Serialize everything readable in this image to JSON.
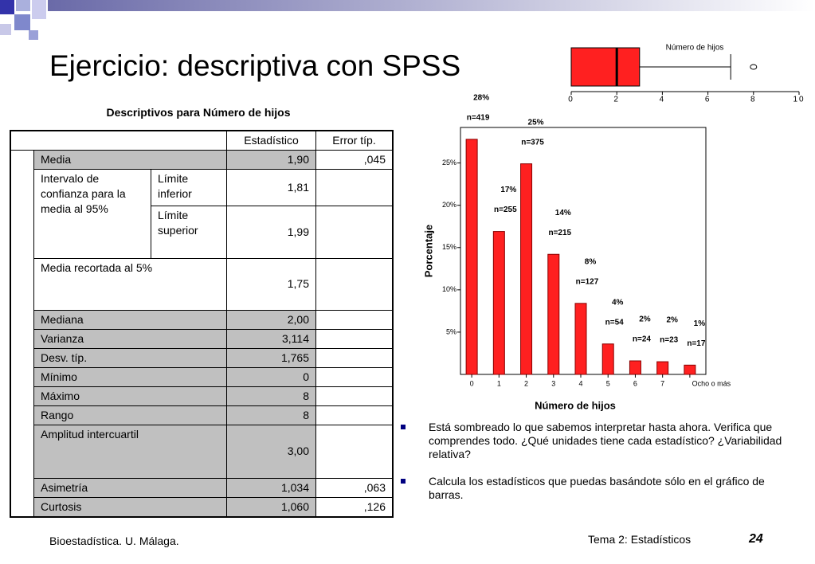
{
  "title": "Ejercicio: descriptiva con SPSS",
  "table": {
    "title": "Descriptivos para Número de hijos",
    "headers": [
      "Estadístico",
      "Error típ."
    ],
    "rows": [
      {
        "label": "Media",
        "statistic": "1,90",
        "error": ",045",
        "shaded": true
      },
      {
        "label": "Intervalo de confianza para la media al 95%",
        "sublabel": "Límite inferior",
        "statistic": "1,81",
        "shaded": false
      },
      {
        "sublabel": "Límite superior",
        "statistic": "1,99",
        "shaded": false
      },
      {
        "label": "Media recortada al 5%",
        "statistic": "1,75",
        "shaded": false
      },
      {
        "label": "Mediana",
        "statistic": "2,00",
        "shaded": true
      },
      {
        "label": "Varianza",
        "statistic": "3,114",
        "shaded": true
      },
      {
        "label": "Desv. típ.",
        "statistic": "1,765",
        "shaded": true
      },
      {
        "label": "Mínimo",
        "statistic": "0",
        "shaded": true
      },
      {
        "label": "Máximo",
        "statistic": "8",
        "shaded": true
      },
      {
        "label": "Rango",
        "statistic": "8",
        "shaded": true
      },
      {
        "label": "Amplitud intercuartil",
        "statistic": "3,00",
        "shaded": true
      },
      {
        "label": "Asimetría",
        "statistic": "1,034",
        "error": ",063",
        "shaded": true
      },
      {
        "label": "Curtosis",
        "statistic": "1,060",
        "error": ",126",
        "shaded": true
      }
    ]
  },
  "chart_data": [
    {
      "type": "boxplot",
      "title": "Número de hijos",
      "min": 0,
      "q1": 0,
      "median": 2,
      "q3": 3,
      "max": 7,
      "outliers": [
        8
      ],
      "xlim": [
        0,
        10
      ],
      "xticks": [
        0,
        2,
        4,
        6,
        8,
        10
      ],
      "color": "#ff2020"
    },
    {
      "type": "bar",
      "categories": [
        "0",
        "1",
        "2",
        "3",
        "4",
        "5",
        "6",
        "7",
        "Ocho o más"
      ],
      "values": [
        27.8,
        16.9,
        24.9,
        14.2,
        8.4,
        3.6,
        1.6,
        1.5,
        1.1
      ],
      "value_labels": [
        "28%",
        "17%",
        "25%",
        "14%",
        "8%",
        "4%",
        "2%",
        "2%",
        "1%"
      ],
      "annotations": [
        "n=419",
        "n=255",
        "n=375",
        "n=215",
        "n=127",
        "n=54",
        "n=24",
        "n=23",
        "n=17"
      ],
      "xlabel": "Número de hijos",
      "ylabel": "Porcentaje",
      "ylim": [
        0,
        29.2
      ],
      "yticks": [
        {
          "value": 5,
          "label": "5%"
        },
        {
          "value": 10,
          "label": "10%"
        },
        {
          "value": 15,
          "label": "15%"
        },
        {
          "value": 20,
          "label": "20%"
        },
        {
          "value": 25,
          "label": "25%"
        }
      ],
      "color": "#ff2020"
    }
  ],
  "bullets": [
    "Está sombreado lo que sabemos interpretar hasta ahora. Verifica que comprendes todo. ¿Qué unidades tiene cada estadístico? ¿Variabilidad relativa?",
    "Calcula los estadísticos que puedas basándote sólo en el gráfico de barras."
  ],
  "footer": {
    "left": "Bioestadística. U. Málaga.",
    "center": "Tema 2: Estadísticos",
    "page": "24"
  }
}
